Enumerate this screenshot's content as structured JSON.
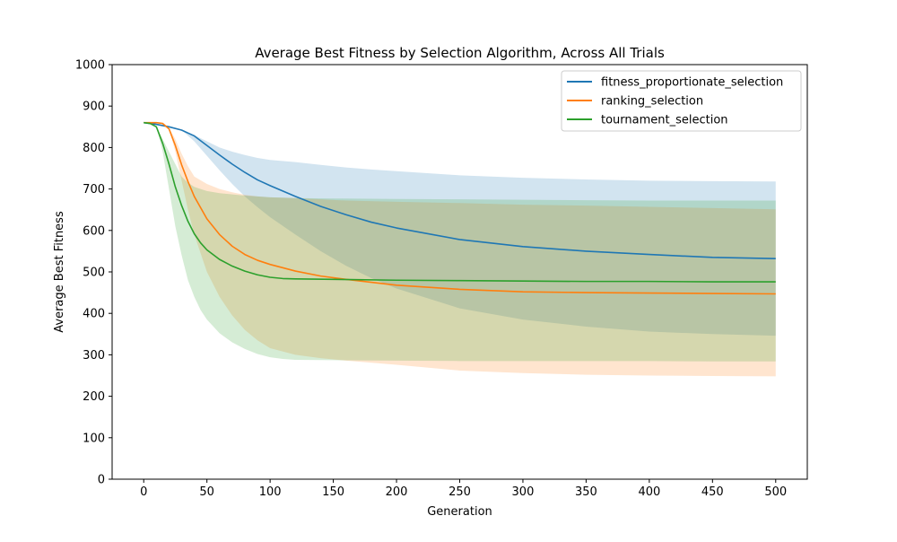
{
  "chart_data": {
    "type": "line",
    "title": "Average Best Fitness by Selection Algorithm, Across All Trials",
    "xlabel": "Generation",
    "ylabel": "Average Best Fitness",
    "xlim": [
      -25,
      525
    ],
    "ylim": [
      0,
      1000
    ],
    "xticks": [
      0,
      50,
      100,
      150,
      200,
      250,
      300,
      350,
      400,
      450,
      500
    ],
    "yticks": [
      0,
      100,
      200,
      300,
      400,
      500,
      600,
      700,
      800,
      900,
      1000
    ],
    "grid": false,
    "legend_position": "top-right",
    "series": [
      {
        "name": "fitness_proportionate_selection",
        "color": "#1f77b4",
        "x": [
          0,
          10,
          20,
          30,
          40,
          50,
          60,
          70,
          80,
          90,
          100,
          120,
          140,
          160,
          180,
          200,
          250,
          300,
          350,
          400,
          450,
          500
        ],
        "y": [
          860,
          856,
          850,
          842,
          828,
          805,
          782,
          760,
          740,
          722,
          708,
          682,
          658,
          638,
          620,
          606,
          578,
          561,
          550,
          542,
          535,
          532
        ],
        "band_lower": [
          860,
          856,
          850,
          842,
          815,
          780,
          745,
          712,
          682,
          656,
          632,
          590,
          550,
          515,
          485,
          460,
          412,
          385,
          368,
          356,
          350,
          346
        ],
        "band_upper": [
          860,
          856,
          850,
          842,
          830,
          815,
          800,
          790,
          782,
          775,
          770,
          765,
          758,
          752,
          747,
          743,
          733,
          727,
          723,
          720,
          719,
          718
        ]
      },
      {
        "name": "ranking_selection",
        "color": "#ff7f0e",
        "x": [
          0,
          10,
          15,
          20,
          25,
          30,
          35,
          40,
          50,
          60,
          70,
          80,
          90,
          100,
          120,
          140,
          160,
          200,
          250,
          300,
          350,
          400,
          450,
          500
        ],
        "y": [
          860,
          860,
          858,
          845,
          805,
          758,
          718,
          682,
          628,
          590,
          562,
          542,
          528,
          518,
          502,
          490,
          482,
          468,
          458,
          452,
          450,
          449,
          448,
          447
        ],
        "band_lower": [
          860,
          860,
          858,
          845,
          790,
          720,
          650,
          590,
          500,
          440,
          395,
          360,
          335,
          316,
          300,
          292,
          286,
          276,
          262,
          256,
          252,
          250,
          249,
          248
        ],
        "band_upper": [
          860,
          860,
          858,
          848,
          820,
          785,
          755,
          730,
          712,
          700,
          692,
          686,
          682,
          680,
          678,
          675,
          672,
          669,
          666,
          662,
          660,
          657,
          654,
          651
        ]
      },
      {
        "name": "tournament_selection",
        "color": "#2ca02c",
        "x": [
          0,
          5,
          10,
          15,
          20,
          25,
          30,
          35,
          40,
          45,
          50,
          60,
          70,
          80,
          90,
          100,
          110,
          120,
          150,
          200,
          250,
          300,
          350,
          400,
          450,
          500
        ],
        "y": [
          860,
          858,
          850,
          810,
          760,
          705,
          660,
          622,
          592,
          570,
          553,
          530,
          514,
          502,
          493,
          487,
          484,
          483,
          482,
          480,
          479,
          478,
          477,
          477,
          476,
          476
        ],
        "band_lower": [
          860,
          858,
          850,
          790,
          700,
          610,
          540,
          480,
          440,
          408,
          385,
          352,
          330,
          314,
          302,
          294,
          290,
          288,
          287,
          286,
          285,
          285,
          285,
          285,
          284,
          284
        ],
        "band_upper": [
          860,
          858,
          850,
          820,
          790,
          760,
          730,
          715,
          705,
          700,
          695,
          690,
          687,
          684,
          682,
          680,
          679,
          678,
          677,
          676,
          675,
          674,
          673,
          672,
          672,
          672
        ]
      }
    ]
  }
}
